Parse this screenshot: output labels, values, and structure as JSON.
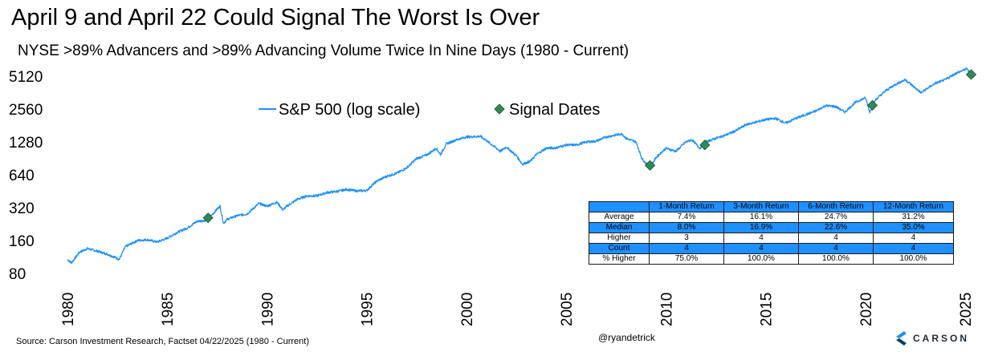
{
  "title": "April 9 and April 22 Could Signal The Worst Is Over",
  "subtitle": "NYSE >89% Advancers and >89% Advancing Volume Twice In Nine Days (1980 - Current)",
  "source": "Source: Carson Investment Research, Factset 04/22/2025 (1980 - Current)",
  "handle": "@ryandetrick",
  "brand": "CARSON",
  "colors": {
    "line": "#1e90ff",
    "marker": "#2e8b57",
    "table_band": "#1e90ff"
  },
  "chart_data": {
    "type": "line",
    "title": "April 9 and April 22 Could Signal The Worst Is Over",
    "subtitle": "NYSE >89% Advancers and >89% Advancing Volume Twice In Nine Days (1980 - Current)",
    "y_scale": "log",
    "ylim": [
      80,
      5120
    ],
    "y_ticks": [
      "80",
      "160",
      "320",
      "640",
      "1280",
      "2560",
      "5120"
    ],
    "xlim": [
      1980,
      2025.4
    ],
    "x_ticks": [
      "1980",
      "1985",
      "1990",
      "1995",
      "2000",
      "2005",
      "2010",
      "2015",
      "2020",
      "2025"
    ],
    "legend_position": "top-center",
    "grid": false,
    "series": [
      {
        "name": "S&P 500 (log scale)",
        "type": "line",
        "x": [
          1980.0,
          1980.2,
          1980.6,
          1981.0,
          1981.5,
          1982.0,
          1982.6,
          1982.9,
          1983.5,
          1984.0,
          1984.5,
          1985.0,
          1985.5,
          1986.0,
          1986.5,
          1987.0,
          1987.5,
          1987.65,
          1987.82,
          1988.0,
          1988.5,
          1989.0,
          1989.6,
          1990.0,
          1990.5,
          1990.8,
          1991.0,
          1991.5,
          1992.0,
          1992.5,
          1993.0,
          1993.5,
          1994.0,
          1994.5,
          1995.0,
          1995.5,
          1996.0,
          1996.5,
          1997.0,
          1997.5,
          1998.0,
          1998.5,
          1998.7,
          1999.0,
          1999.5,
          2000.0,
          2000.7,
          2001.0,
          2001.7,
          2002.0,
          2002.5,
          2002.8,
          2003.2,
          2003.5,
          2004.0,
          2004.5,
          2005.0,
          2005.5,
          2006.0,
          2006.5,
          2007.0,
          2007.8,
          2008.0,
          2008.5,
          2008.8,
          2009.2,
          2009.5,
          2010.0,
          2010.5,
          2011.0,
          2011.3,
          2011.7,
          2012.0,
          2012.5,
          2013.0,
          2013.5,
          2014.0,
          2014.5,
          2015.0,
          2015.5,
          2016.0,
          2016.5,
          2017.0,
          2017.5,
          2018.0,
          2018.5,
          2018.97,
          2019.5,
          2020.0,
          2020.22,
          2020.5,
          2021.0,
          2021.5,
          2022.0,
          2022.8,
          2023.0,
          2023.5,
          2024.0,
          2024.5,
          2025.0,
          2025.1,
          2025.3
        ],
        "values": [
          107,
          100,
          125,
          135,
          128,
          120,
          108,
          140,
          160,
          163,
          155,
          168,
          190,
          208,
          240,
          246,
          310,
          330,
          230,
          250,
          270,
          280,
          350,
          330,
          360,
          305,
          330,
          380,
          410,
          410,
          440,
          450,
          470,
          455,
          460,
          560,
          620,
          660,
          740,
          900,
          970,
          1120,
          980,
          1230,
          1340,
          1420,
          1440,
          1320,
          1050,
          1150,
          960,
          800,
          850,
          980,
          1120,
          1130,
          1200,
          1200,
          1280,
          1300,
          1420,
          1520,
          1380,
          1280,
          900,
          740,
          920,
          1120,
          1050,
          1280,
          1340,
          1120,
          1280,
          1380,
          1480,
          1620,
          1840,
          1940,
          2050,
          2100,
          1900,
          2100,
          2270,
          2450,
          2750,
          2700,
          2400,
          2950,
          3250,
          2400,
          3100,
          3750,
          4300,
          4750,
          3600,
          3850,
          4400,
          4750,
          5400,
          5900,
          6000,
          5100
        ]
      },
      {
        "name": "Signal Dates",
        "type": "scatter",
        "x": [
          1987.05,
          2009.2,
          2011.95,
          2020.35,
          2025.3
        ],
        "values": [
          258,
          780,
          1200,
          2770,
          5300
        ]
      }
    ],
    "table": {
      "headers": [
        "",
        "1-Month Return",
        "3-Month Return",
        "6-Month Return",
        "12-Month Return"
      ],
      "rows": [
        [
          "Average",
          "7.4%",
          "16.1%",
          "24.7%",
          "31.2%"
        ],
        [
          "Median",
          "8.0%",
          "16.9%",
          "22.6%",
          "35.0%"
        ],
        [
          "Higher",
          "3",
          "4",
          "4",
          "4"
        ],
        [
          "Count",
          "4",
          "4",
          "4",
          "4"
        ],
        [
          "% Higher",
          "75.0%",
          "100.0%",
          "100.0%",
          "100.0%"
        ]
      ]
    }
  }
}
